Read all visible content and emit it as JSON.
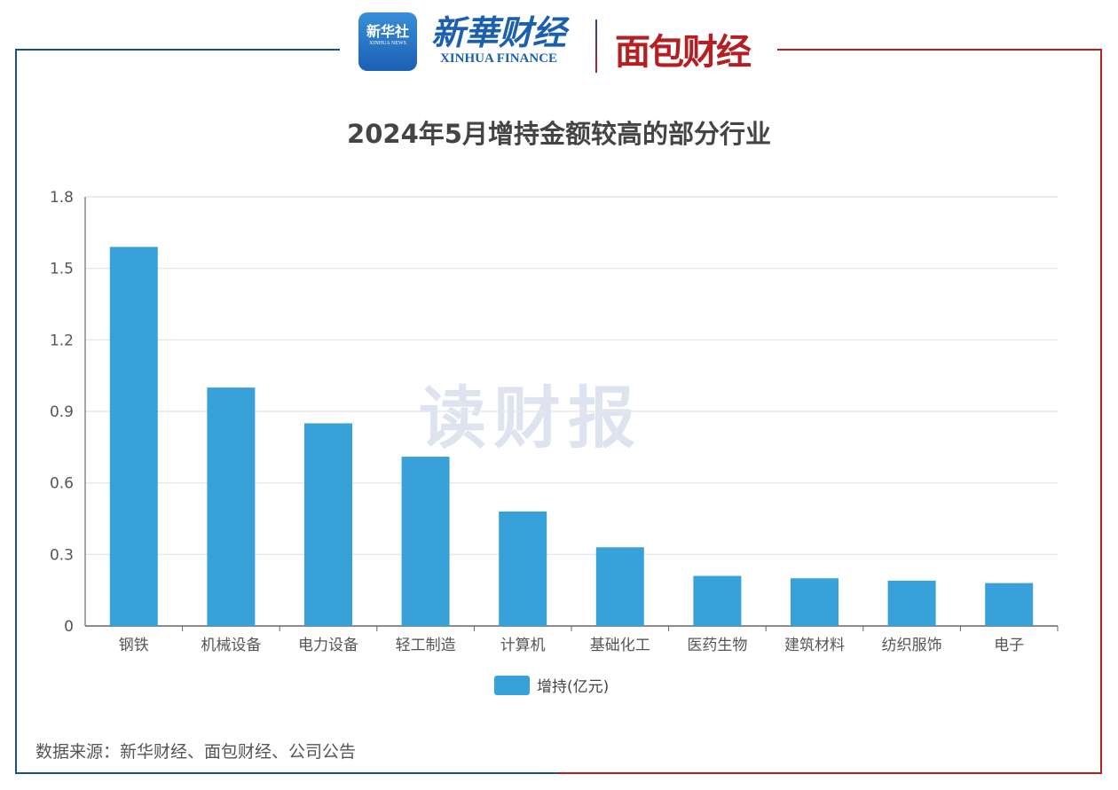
{
  "header": {
    "logo_xinhua_news": "新华社",
    "logo_xinhua_news_en": "XINHUA NEWS",
    "logo_xinhua_finance": "新華财经",
    "logo_xinhua_finance_en": "XINHUA FINANCE",
    "logo_mianbao": "面包财经"
  },
  "watermark": "读财报",
  "source": "数据来源：新华财经、面包财经、公司公告",
  "chart_data": {
    "type": "bar",
    "title": "2024年5月增持金额较高的部分行业",
    "categories": [
      "钢铁",
      "机械设备",
      "电力设备",
      "轻工制造",
      "计算机",
      "基础化工",
      "医药生物",
      "建筑材料",
      "纺织服饰",
      "电子"
    ],
    "series": [
      {
        "name": "增持(亿元)",
        "values": [
          1.59,
          1.0,
          0.85,
          0.71,
          0.48,
          0.33,
          0.21,
          0.2,
          0.19,
          0.18
        ],
        "color": "#39a1da"
      }
    ],
    "yticks": [
      "0",
      "0.3",
      "0.6",
      "0.9",
      "1.2",
      "1.5",
      "1.8"
    ],
    "ylim": [
      0,
      1.8
    ],
    "grid": true,
    "legend": "bottom"
  }
}
